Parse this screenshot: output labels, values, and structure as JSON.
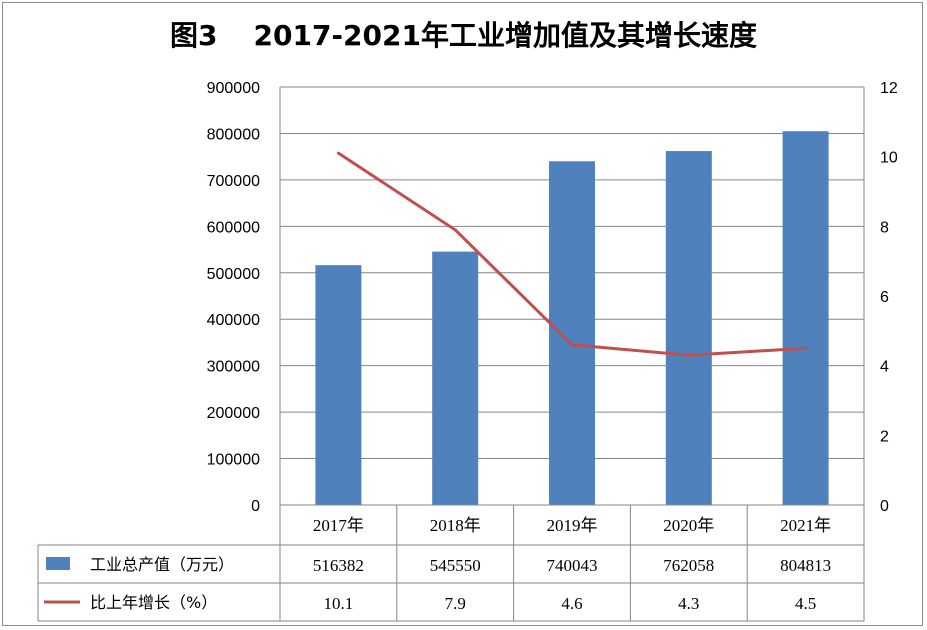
{
  "title": {
    "figure": "图3",
    "text": "2017-2021年工业增加值及其增长速度"
  },
  "colors": {
    "bar": "#4f81bd",
    "line": "#c0504d",
    "grid": "#868686"
  },
  "chart_data": {
    "type": "bar",
    "categories": [
      "2017年",
      "2018年",
      "2019年",
      "2020年",
      "2021年"
    ],
    "series": [
      {
        "name": "工业总产值（万元）",
        "type": "bar",
        "axis": "left",
        "values": [
          516382,
          545550,
          740043,
          762058,
          804813
        ],
        "labels": [
          "516382",
          "545550",
          "740043",
          "762058",
          "804813"
        ]
      },
      {
        "name": "比上年增长（%）",
        "type": "line",
        "axis": "right",
        "values": [
          10.1,
          7.9,
          4.6,
          4.3,
          4.5
        ],
        "labels": [
          "10.1",
          "7.9",
          "4.6",
          "4.3",
          "4.5"
        ]
      }
    ],
    "y_left": {
      "min": 0,
      "max": 900000,
      "step": 100000,
      "ticks": [
        "0",
        "100000",
        "200000",
        "300000",
        "400000",
        "500000",
        "600000",
        "700000",
        "800000",
        "900000"
      ]
    },
    "y_right": {
      "min": 0,
      "max": 12,
      "step": 2,
      "ticks": [
        "0",
        "2",
        "4",
        "6",
        "8",
        "10",
        "12"
      ]
    },
    "grid": true,
    "legend": "data-table"
  }
}
